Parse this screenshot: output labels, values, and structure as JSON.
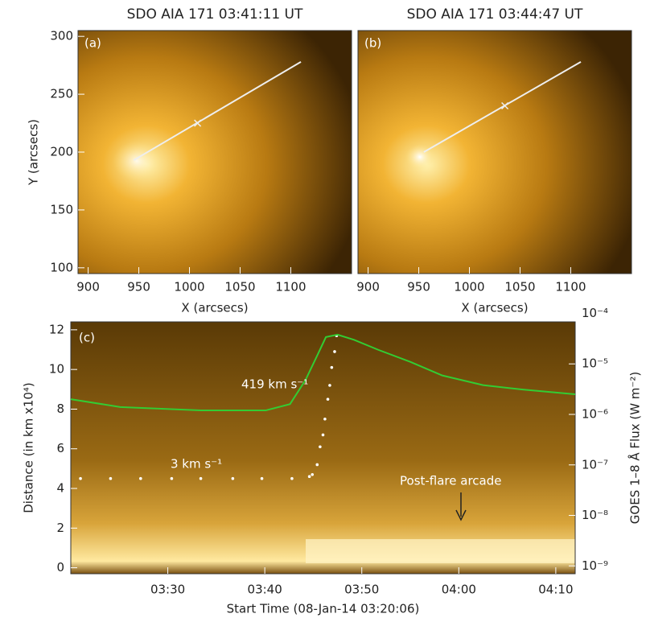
{
  "chart_data": [
    {
      "type": "image",
      "title": "SDO AIA 171 03:41:11 UT",
      "panel_label": "(a)",
      "xlabel": "X (arcsecs)",
      "ylabel": "Y (arcsecs)",
      "xlim": [
        890,
        1160
      ],
      "ylim": [
        95,
        305
      ],
      "xticks": [
        900,
        950,
        1000,
        1050,
        1100
      ],
      "yticks": [
        100,
        150,
        200,
        250,
        300
      ],
      "line": {
        "x": [
          945,
          1110
        ],
        "y": [
          193,
          278
        ]
      },
      "marker": {
        "x": 1008,
        "y": 225
      }
    },
    {
      "type": "image",
      "title": "SDO AIA 171 03:44:47 UT",
      "panel_label": "(b)",
      "xlabel": "X (arcsecs)",
      "xlim": [
        890,
        1160
      ],
      "ylim": [
        95,
        305
      ],
      "xticks": [
        900,
        950,
        1000,
        1050,
        1100
      ],
      "line": {
        "x": [
          955,
          1110
        ],
        "y": [
          200,
          278
        ]
      },
      "marker": {
        "x": 1035,
        "y": 240
      }
    },
    {
      "type": "time-distance",
      "panel_label": "(c)",
      "xlabel": "Start Time (08-Jan-14 03:20:06)",
      "ylabel": "Distance (in km x10⁴)",
      "y2label": "GOES 1–8 Å Flux (W m⁻²)",
      "xlim": [
        200,
        252
      ],
      "ylim": [
        -0.3,
        12.4
      ],
      "y2lim": [
        7e-10,
        6.8e-05
      ],
      "y2log": true,
      "xticks": [
        {
          "value": 210,
          "label": "03:30"
        },
        {
          "value": 220,
          "label": "03:40"
        },
        {
          "value": 230,
          "label": "03:50"
        },
        {
          "value": 240,
          "label": "04:00"
        },
        {
          "value": 250,
          "label": "04:10"
        }
      ],
      "yticks": [
        0,
        2,
        4,
        6,
        8,
        10,
        12
      ],
      "y2ticks": [
        {
          "value": 1e-09,
          "label": "10⁻⁹"
        },
        {
          "value": 1e-08,
          "label": "10⁻⁸"
        },
        {
          "value": 1e-07,
          "label": "10⁻⁷"
        },
        {
          "value": 1e-06,
          "label": "10⁻⁶"
        },
        {
          "value": 1e-05,
          "label": "10⁻⁵"
        },
        {
          "value": 0.0001,
          "label": "10⁻⁴"
        }
      ],
      "series": [
        {
          "color": "#ffffff",
          "x": [
            201.0,
            204.1,
            207.2,
            210.4,
            213.4,
            216.7,
            219.7,
            222.8,
            224.6,
            224.9,
            225.4,
            225.7,
            226.0,
            226.2,
            226.5,
            226.7,
            226.9,
            227.2,
            227.4
          ],
          "values": [
            4.5,
            4.5,
            4.5,
            4.5,
            4.5,
            4.5,
            4.5,
            4.5,
            4.6,
            4.7,
            5.2,
            6.1,
            6.7,
            7.5,
            8.5,
            9.2,
            10.1,
            10.9,
            11.7
          ]
        },
        {
          "color": "#33cc33",
          "axis": "y2",
          "x": [
            200,
            205.1,
            213.4,
            220.1,
            222.6,
            224.2,
            225.5,
            226.3,
            227.5,
            229.2,
            231.7,
            235.0,
            238.3,
            242.5,
            246.6,
            252
          ],
          "values": [
            2e-06,
            1.4e-06,
            1.2e-06,
            1.2e-06,
            1.6e-06,
            4.8e-06,
            1.6e-05,
            3.4e-05,
            3.8e-05,
            3e-05,
            1.9e-05,
            1.1e-05,
            5.9e-06,
            3.8e-06,
            3.1e-06,
            2.5e-06
          ]
        }
      ],
      "annotations": [
        {
          "text": "419 km s⁻¹"
        },
        {
          "text": "3 km s⁻¹"
        },
        {
          "text": "Post-flare arcade"
        }
      ]
    }
  ]
}
